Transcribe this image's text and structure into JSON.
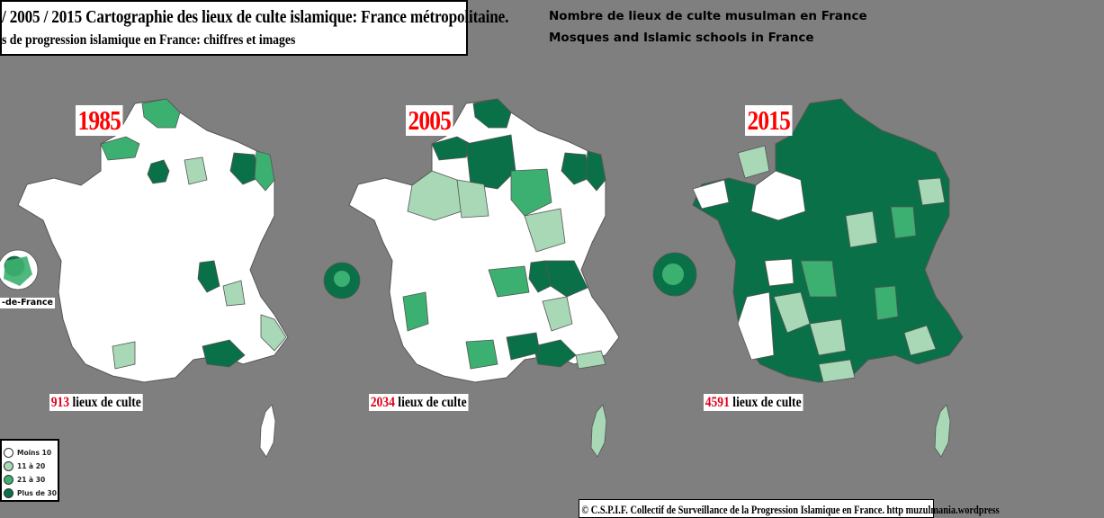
{
  "title": {
    "main": "/ 2005 / 2015  Cartographie des lieux de culte islamique: France métropolitaine.",
    "sub": "s de progression islamique en France: chiffres et images"
  },
  "header_right": {
    "line1": "Nombre de lieux de culte musulman en France",
    "line2": "Mosques and Islamic schools in France"
  },
  "maps": [
    {
      "year": "1985",
      "count": "913",
      "count_suffix": " lieux de culte"
    },
    {
      "year": "2005",
      "count": "2034",
      "count_suffix": " lieux de culte"
    },
    {
      "year": "2015",
      "count": "4591",
      "count_suffix": " lieux de culte"
    }
  ],
  "idf_label": "-de-France",
  "legend": {
    "items": [
      {
        "label": "Moins 10",
        "color": "#ffffff"
      },
      {
        "label": "11 à 20",
        "color": "#a8d8b5"
      },
      {
        "label": "21 à 30",
        "color": "#3cb070"
      },
      {
        "label": "Plus de 30",
        "color": "#0a7048"
      }
    ]
  },
  "copyright": "© C.S.P.I.F. Collectif de Surveillance de la Progression Islamique en France. http muzulmania.wordpress",
  "colors": {
    "background": "#7f7f7f",
    "white": "#ffffff",
    "light": "#a8d8b5",
    "medium": "#3cb070",
    "dark": "#0a7048",
    "year_red": "#ff0000"
  }
}
